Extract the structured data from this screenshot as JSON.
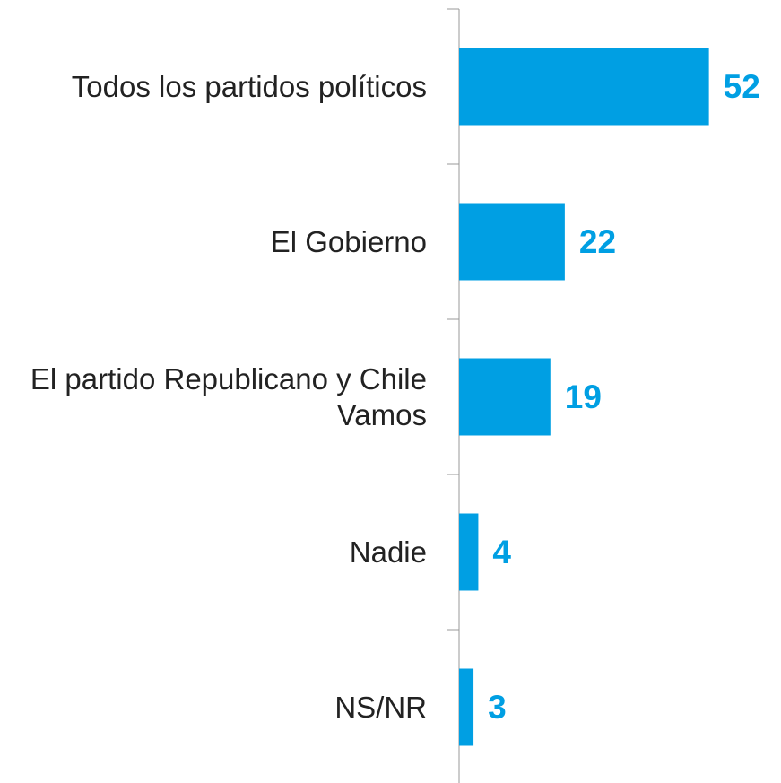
{
  "chart_data": {
    "type": "bar",
    "orientation": "horizontal",
    "categories": [
      "Todos los partidos políticos",
      "El Gobierno",
      "El partido Republicano y Chile Vamos",
      "Nadie",
      "NS/NR"
    ],
    "values": [
      52,
      22,
      19,
      4,
      3
    ],
    "color": "#009fe3",
    "xlim": [
      0,
      67
    ]
  }
}
